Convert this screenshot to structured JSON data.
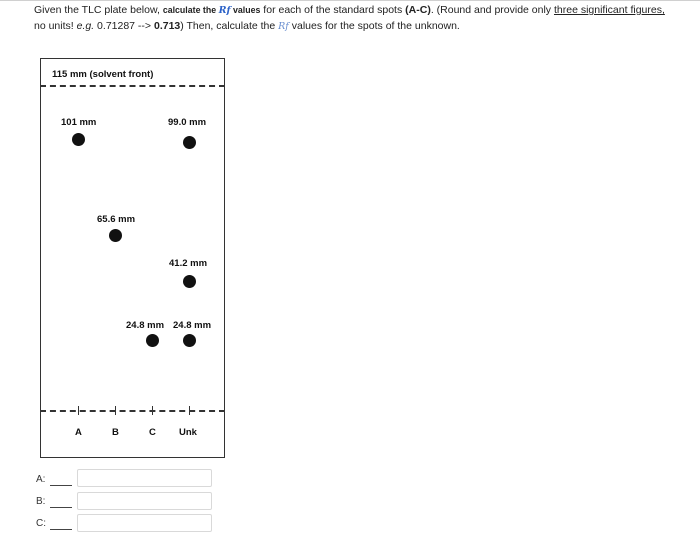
{
  "question": {
    "p1": "Given the TLC plate below, ",
    "p2": "calculate the ",
    "rf_symbol": "Rf",
    "p3": " values",
    "p4": " for each of the standard spots ",
    "p5": "(A-C)",
    "p6": ". (Round and provide only ",
    "p7": "three significant figures,",
    "p8": "no units! ",
    "p9": "e.g.",
    "p10": " 0.71287 --> ",
    "p11": "0.713",
    "p12": ") Then, calculate the ",
    "rf_symbol2": "Rf",
    "p13": " values for the spots of the unknown."
  },
  "plate": {
    "solvent_front_label": "115 mm (solvent front)",
    "spot_labels": {
      "a": "101 mm",
      "b": "65.6 mm",
      "c": "24.8 mm",
      "unk_high": "99.0 mm",
      "unk_mid": "41.2 mm",
      "unk_low": "24.8 mm"
    },
    "lane_labels": [
      "A",
      "B",
      "C",
      "Unk"
    ]
  },
  "answers": [
    {
      "label": "A:",
      "value": ""
    },
    {
      "label": "B:",
      "value": ""
    },
    {
      "label": "C:",
      "value": ""
    }
  ]
}
